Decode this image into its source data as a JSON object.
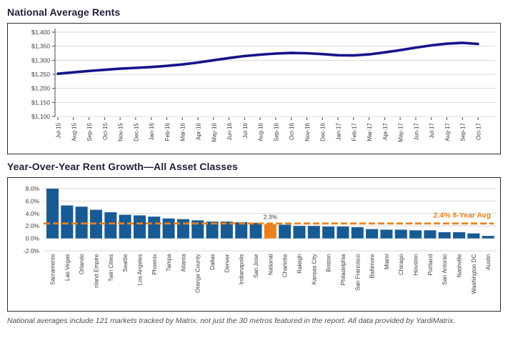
{
  "page": {
    "footer": "National averages include 121 markets tracked by Matrix, not just the 30 metros featured in the report. All data provided by YardiMatrix."
  },
  "colors": {
    "line_navy": "#14148C",
    "bar_blue": "#175A94",
    "accent_orange": "#E8811E",
    "grid_gray": "#D7D7D7",
    "axis_dark": "#4a4a4a",
    "label_text": "#3d3d3d"
  },
  "chart_data": [
    {
      "type": "line",
      "title": "National Average Rents",
      "x": [
        "Jul-15",
        "Aug-15",
        "Sep-15",
        "Oct-15",
        "Nov-15",
        "Dec-15",
        "Jan-16",
        "Feb-16",
        "Mar-16",
        "Apr-16",
        "May-16",
        "Jun-16",
        "Jul-16",
        "Aug-16",
        "Sep-16",
        "Oct-16",
        "Nov-16",
        "Dec-16",
        "Jan-17",
        "Feb-17",
        "Mar-17",
        "Apr-17",
        "May-17",
        "Jun-17",
        "Jul-17",
        "Aug-17",
        "Sep-17",
        "Oct-17"
      ],
      "values": [
        1252,
        1257,
        1262,
        1266,
        1270,
        1273,
        1276,
        1280,
        1285,
        1292,
        1300,
        1308,
        1315,
        1320,
        1324,
        1326,
        1325,
        1322,
        1318,
        1317,
        1321,
        1328,
        1336,
        1345,
        1353,
        1359,
        1362,
        1358
      ],
      "ylim": [
        1100,
        1400
      ],
      "yticks": [
        1400,
        1350,
        1300,
        1250,
        1200,
        1150,
        1100
      ],
      "ytick_labels": [
        "$1,400",
        "$1,350",
        "$1,300",
        "$1,250",
        "$1,200",
        "$1,150",
        "$1,100"
      ],
      "grid": true,
      "line_color": "#14148C"
    },
    {
      "type": "bar",
      "title": "Year-Over-Year Rent Growth—All Asset Classes",
      "categories": [
        "Sacramento",
        "Las Vegas",
        "Orlando",
        "nland Empire",
        "Twin Cities",
        "Seattle",
        "Los Angeles",
        "Phoenix",
        "Tampa",
        "Atlanta",
        "Orange County",
        "Dallas",
        "Denver",
        "Indianapolis",
        "San Jose",
        "National",
        "Charlotte",
        "Raleigh",
        "Kansas City",
        "Boston",
        "Philadelphia",
        "San Francisco",
        "Baltimore",
        "Miami",
        "Chicago",
        "Houston",
        "Portland",
        "San Antonio",
        "Nashville",
        "Washington DC",
        "Austin"
      ],
      "values": [
        8.0,
        5.3,
        5.1,
        4.6,
        4.2,
        3.8,
        3.7,
        3.5,
        3.2,
        3.1,
        2.9,
        2.7,
        2.7,
        2.6,
        2.5,
        2.3,
        2.2,
        2.0,
        2.0,
        1.9,
        1.9,
        1.8,
        1.5,
        1.4,
        1.4,
        1.3,
        1.3,
        1.0,
        1.0,
        0.8,
        0.4
      ],
      "ylim": [
        -2,
        8
      ],
      "yticks": [
        8,
        6,
        4,
        2,
        0,
        -2
      ],
      "ytick_labels": [
        "8.0%",
        "6.0%",
        "4.0%",
        "2.0%",
        "0.0%",
        "-2.0%"
      ],
      "grid": true,
      "bar_color": "#175A94",
      "highlight_index": 15,
      "highlight_color": "#E8811E",
      "highlight_label": "2.3%",
      "avg_line": {
        "value": 2.4,
        "label": "2.4% 8-Year Avg",
        "color": "#E8811E"
      }
    }
  ]
}
